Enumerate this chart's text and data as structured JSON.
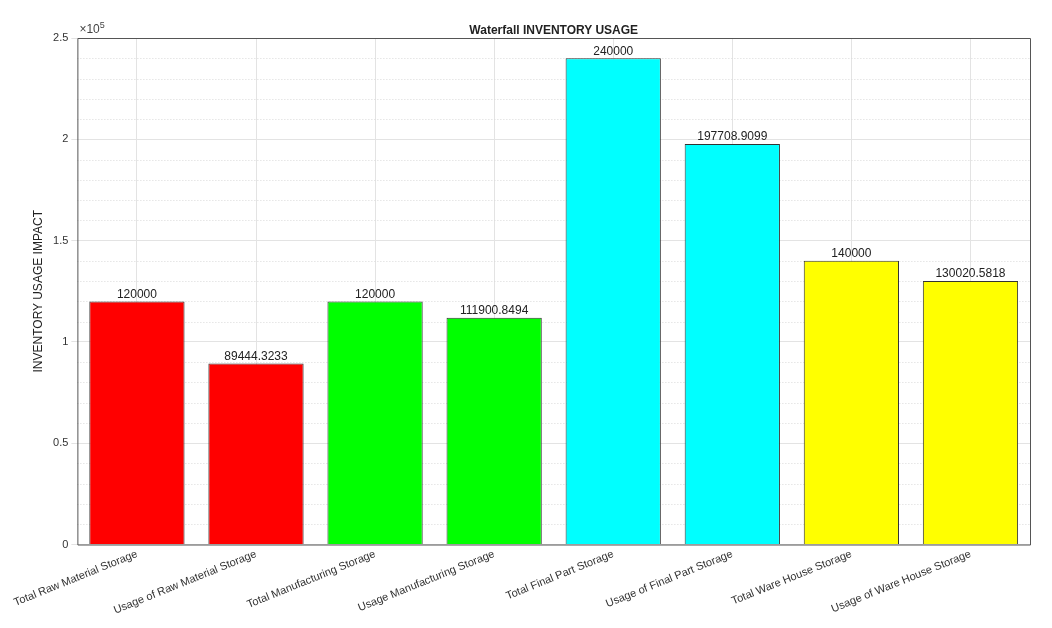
{
  "chart_data": {
    "type": "bar",
    "title": "Waterfall INVENTORY USAGE",
    "ylabel": "INVENTORY USAGE IMPACT",
    "categories": [
      "Total Raw Material Storage",
      "Usage of Raw Material Storage",
      "Total Manufacturing Storage",
      "Usage Manufacturing Storage",
      "Total Final Part Storage",
      "Usage of Final Part Storage",
      "Total Ware House Storage",
      "Usage of Ware House Storage"
    ],
    "values": [
      1.2,
      0.894,
      1.2,
      1.119,
      2.4,
      1.977,
      1.4,
      1.3
    ],
    "colors": [
      "#ff0000",
      "#ff0000",
      "#00ff00",
      "#00ff00",
      "#00ffff",
      "#00ffff",
      "#ffff00",
      "#ffff00"
    ],
    "ylim": [
      0,
      2.5
    ],
    "yticks": [
      0,
      0.5,
      1,
      1.5,
      2,
      2.5
    ],
    "annotations": [
      "×10$^{5}$",
      {
        "text": "120000",
        "x": "Total Raw Material Storage",
        "y": 1.2
      },
      {
        "text": "89444.3233",
        "x": "Usage of Raw Material Storage",
        "y": 0.894
      },
      {
        "text": "120000",
        "x": "Total Manufacturing Storage",
        "y": 1.2
      },
      {
        "text": "111900.8494",
        "x": "Usage Manufacturing Storage",
        "y": 1.119
      },
      {
        "text": "240000",
        "x": "Total Final Part Storage",
        "y": 2.4
      },
      {
        "text": "197708.9099",
        "x": "Usage of Final Part Storage",
        "y": 1.977
      },
      {
        "text": "140000",
        "x": "Total Ware House Storage",
        "y": 1.4
      },
      {
        "text": "130020.5818",
        "x": "Usage of Ware House Storage",
        "y": 1.3
      }
    ],
    "grid": true,
    "legend": false
  }
}
